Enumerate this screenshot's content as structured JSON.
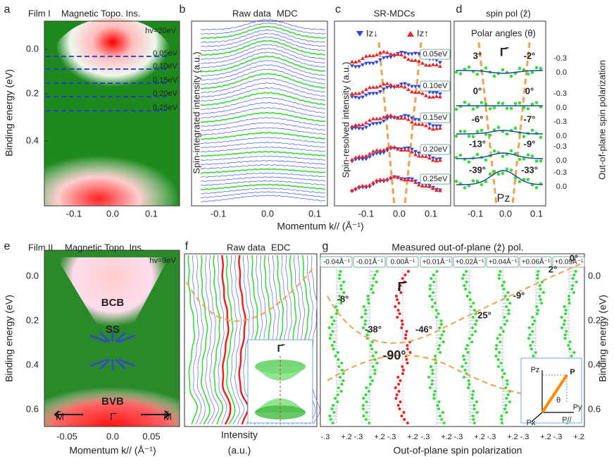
{
  "a": {
    "letter": "a",
    "film": "Film I",
    "title": "Magnetic Topo. Ins.",
    "photon": "hv=20eV",
    "cuts": [
      "0.05eV",
      "0.10eV",
      "0.15eV",
      "0.20eV",
      "0.25eV"
    ],
    "yticks": [
      "0.0",
      "0.2",
      "0.4"
    ],
    "xticks": [
      "-0.1",
      "0.0",
      "0.1"
    ],
    "ylabel": "Binding energy (eV)"
  },
  "b": {
    "letter": "b",
    "title": "Raw data",
    "title_hl": "MDC",
    "ylabel": "Spin-integrated intensity (a.u.)",
    "xticks": [
      "-0.1",
      "0.0",
      "0.1"
    ]
  },
  "xlabel_top": "Momentum k// (Å⁻¹)",
  "c": {
    "letter": "c",
    "title": "SR-MDCs",
    "legend": [
      "Iz↓",
      "Iz↑"
    ],
    "cuts": [
      "0.05eV",
      "0.10eV",
      "0.15eV",
      "0.20eV",
      "0.25eV"
    ],
    "ylabel": "Spin-resolved intensity (a.u.)",
    "xticks": [
      "-0.1",
      "0.0",
      "0.1"
    ]
  },
  "d": {
    "letter": "d",
    "title": "spin pol (ẑ)",
    "note": "Polar angles (θ)",
    "point": "Γ̄",
    "angles": [
      [
        "3°",
        "-2°"
      ],
      [
        "0°",
        "0°"
      ],
      [
        "-6°",
        "-7°"
      ],
      [
        "-13°",
        "-9°"
      ],
      [
        "-39°",
        "-33°"
      ]
    ],
    "label": "Pz",
    "yticks": [
      "-0.3",
      "0.0"
    ],
    "ylabel": "Out-of-plane spin polarization",
    "xticks": [
      "-0.1",
      "0.0",
      "0.1"
    ]
  },
  "e": {
    "letter": "e",
    "film": "Film II",
    "title": "Magnetic Topo. Ins.",
    "photon": "hv=9eV",
    "bands": [
      "BCB",
      "SS",
      "BVB"
    ],
    "points": [
      "M̄",
      "Γ̄",
      "M̄"
    ],
    "yticks": [
      "0.0",
      "0.2",
      "0.4",
      "0.6"
    ],
    "xticks": [
      "-0.05",
      "0.0",
      "0.05"
    ],
    "xlabel": "Momentum k// (Å⁻¹)",
    "ylabel": "Binding energy (eV)"
  },
  "f": {
    "letter": "f",
    "title": "Raw data",
    "title_hl": "EDC",
    "inset": "Γ̄",
    "xlabel": [
      "Intensity",
      "(a.u.)"
    ]
  },
  "g": {
    "letter": "g",
    "title": "Measured out-of-plane (ẑ) pol.",
    "momenta": [
      "-0.04Å⁻¹",
      "-0.01Å⁻¹",
      "0.00Å⁻¹",
      "+0.01Å⁻¹",
      "+0.02Å⁻¹",
      "+0.04Å⁻¹",
      "+0.06Å⁻¹",
      "+0.09Å⁻¹"
    ],
    "angles": [
      "-8°",
      "-38°",
      "-90°",
      "-46°",
      "25°",
      "-9°",
      "2°",
      "0°"
    ],
    "point": "Γ̄",
    "yticks": [
      "0.0",
      "0.2",
      "0.4",
      "0.6"
    ],
    "ylabel": "Binding energy (eV)",
    "xticks": [
      "-.3",
      "+.2"
    ],
    "xlabel": "Out-of-plane spin polarization",
    "inset": [
      "Pz",
      "P",
      "θ",
      "Py",
      "Px",
      "P//"
    ]
  }
}
